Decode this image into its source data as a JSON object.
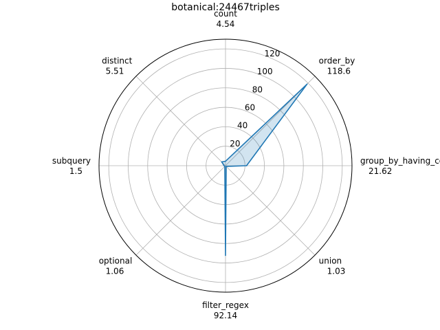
{
  "chart_data": {
    "type": "radar",
    "title": "botanical:24467triples",
    "categories": [
      "count",
      "order_by",
      "group_by_having_count_distinct",
      "union",
      "filter_regex",
      "optional",
      "subquery",
      "distinct"
    ],
    "value_labels": [
      "4.54",
      "118.6",
      "21.62",
      "1.03",
      "92.14",
      "1.06",
      "1.5",
      "5.51"
    ],
    "series": [
      {
        "values": [
          4.54,
          118.6,
          21.62,
          1.03,
          92.14,
          1.06,
          1.5,
          5.51
        ],
        "color": "#1f77b4"
      }
    ],
    "rlim": [
      0,
      130
    ],
    "rticks": [
      20,
      40,
      60,
      80,
      100,
      120
    ],
    "rtick_labels": [
      "20",
      "40",
      "60",
      "80",
      "100",
      "120"
    ],
    "grid": true,
    "fill_color": "#1f77b4"
  }
}
